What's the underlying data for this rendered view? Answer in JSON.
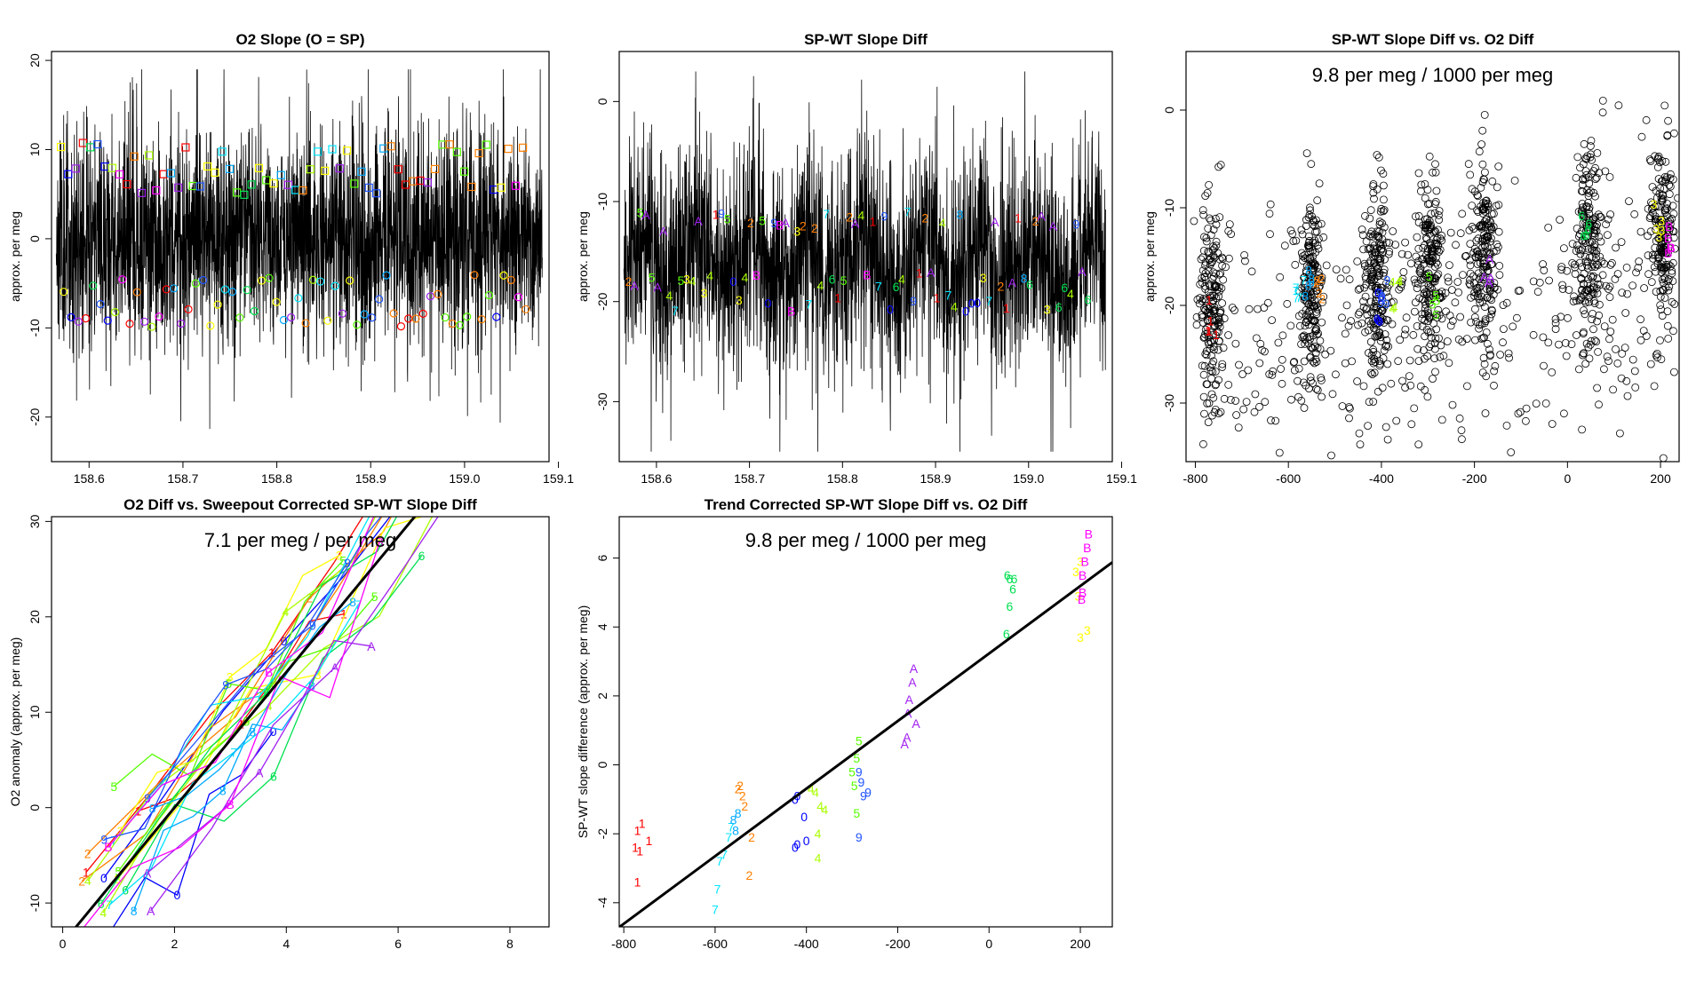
{
  "chart_data": [
    {
      "type": "line",
      "title": "O2 Slope (O = SP)",
      "xlabel": "",
      "ylabel": "approx. per meg",
      "xlim": [
        158.56,
        159.09
      ],
      "ylim": [
        -25,
        21
      ],
      "xticks": [
        "158.6",
        "158.7",
        "158.8",
        "158.9",
        "159.0",
        "159.1"
      ],
      "yticks": [
        "-20",
        "-10",
        "0",
        "10",
        "20"
      ],
      "series": [
        {
          "kind": "noise-trace",
          "color": "#000000",
          "center": 0,
          "band_sd": 6.0,
          "spike_range": [
            -23,
            19
          ]
        },
        {
          "kind": "squares",
          "note_values": "upper open squares",
          "y_levels": [
            10.2,
            9.8,
            7.7,
            6.0,
            5.5
          ]
        },
        {
          "kind": "circles",
          "note_values": "lower open circles",
          "y_levels": [
            -4.5,
            -5.8,
            -6.8,
            -8.5,
            -9.4
          ]
        }
      ],
      "grid": false
    },
    {
      "type": "line",
      "title": "SP-WT Slope Diff",
      "xlabel": "",
      "ylabel": "approx. per meg",
      "xlim": [
        158.56,
        159.09
      ],
      "ylim": [
        -36,
        5
      ],
      "xticks": [
        "158.6",
        "158.7",
        "158.8",
        "158.9",
        "159.0",
        "159.1"
      ],
      "yticks": [
        "-30",
        "-20",
        "-10",
        "0"
      ],
      "series": [
        {
          "kind": "noise-trace",
          "color": "#000000",
          "center": -16,
          "band_sd": 5.5,
          "spike_range": [
            -35,
            3
          ]
        }
      ],
      "grid": false
    },
    {
      "type": "scatter",
      "title": "SP-WT Slope Diff vs. O2 Diff",
      "annotation": "9.8 per meg / 1000 per meg",
      "xlabel": "",
      "ylabel": "approx. per meg",
      "xlim": [
        -820,
        240
      ],
      "ylim": [
        -36,
        6
      ],
      "xticks": [
        "-800",
        "-600",
        "-400",
        "-200",
        "0",
        "200"
      ],
      "yticks": [
        "-30",
        "-20",
        "-10",
        "0"
      ],
      "clusters": [
        {
          "label": "1",
          "x": -765,
          "y": -21,
          "color": "#ff0000"
        },
        {
          "label": "7",
          "x": -575,
          "y": -19,
          "color": "#00e5ff"
        },
        {
          "label": "8",
          "x": -555,
          "y": -18,
          "color": "#00aaff"
        },
        {
          "label": "2",
          "x": -530,
          "y": -19,
          "color": "#ff7f00"
        },
        {
          "label": "0",
          "x": -410,
          "y": -20,
          "color": "#0000ff"
        },
        {
          "label": "9",
          "x": -395,
          "y": -19,
          "color": "#2255ff"
        },
        {
          "label": "4",
          "x": -370,
          "y": -19,
          "color": "#aaff00"
        },
        {
          "label": "5",
          "x": -290,
          "y": -19,
          "color": "#55ff00"
        },
        {
          "label": "A",
          "x": -170,
          "y": -16,
          "color": "#a020f0"
        },
        {
          "label": "6",
          "x": 40,
          "y": -12,
          "color": "#00e050"
        },
        {
          "label": "3",
          "x": 195,
          "y": -11,
          "color": "#ffff00"
        },
        {
          "label": "B",
          "x": 215,
          "y": -13,
          "color": "#ff00ff"
        }
      ],
      "grid": false
    },
    {
      "type": "line",
      "title": "O2 Diff vs. Sweepout Corrected SP-WT Slope Diff",
      "annotation": "7.1 per meg / per meg",
      "xlabel": "",
      "ylabel": "O2 anomaly (approx. per meg)",
      "xlim": [
        -0.2,
        8.7
      ],
      "ylim": [
        -12.5,
        30.5
      ],
      "xticks": [
        "0",
        "2",
        "4",
        "6",
        "8"
      ],
      "yticks": [
        "-10",
        "0",
        "10",
        "20",
        "30"
      ],
      "fit_line": {
        "slope": 7.1,
        "intercept": -14.2
      },
      "grid": false
    },
    {
      "type": "scatter",
      "title": "Trend Corrected SP-WT Slope Diff vs. O2 Diff",
      "annotation": "9.8 per meg / 1000 per meg",
      "xlabel": "",
      "ylabel": "SP-WT slope difference (approx. per meg)",
      "xlim": [
        -810,
        270
      ],
      "ylim": [
        -4.7,
        7.2
      ],
      "xticks": [
        "-800",
        "-600",
        "-400",
        "-200",
        "0",
        "200"
      ],
      "yticks": [
        "-4",
        "-2",
        "0",
        "2",
        "4",
        "6"
      ],
      "fit_line": {
        "slope": 0.0098,
        "intercept": 3.23
      },
      "points": [
        {
          "label": "1",
          "x": -770,
          "y": -1.9
        },
        {
          "label": "1",
          "x": -760,
          "y": -1.7
        },
        {
          "label": "1",
          "x": -745,
          "y": -2.2
        },
        {
          "label": "1",
          "x": -775,
          "y": -2.4
        },
        {
          "label": "1",
          "x": -765,
          "y": -2.5
        },
        {
          "label": "1",
          "x": -770,
          "y": -3.4
        },
        {
          "label": "7",
          "x": -600,
          "y": -4.2
        },
        {
          "label": "7",
          "x": -595,
          "y": -3.6
        },
        {
          "label": "7",
          "x": -590,
          "y": -2.8
        },
        {
          "label": "7",
          "x": -580,
          "y": -2.6
        },
        {
          "label": "7",
          "x": -570,
          "y": -2.1
        },
        {
          "label": "7",
          "x": -565,
          "y": -1.8
        },
        {
          "label": "8",
          "x": -560,
          "y": -1.6
        },
        {
          "label": "8",
          "x": -555,
          "y": -1.9
        },
        {
          "label": "8",
          "x": -550,
          "y": -1.4
        },
        {
          "label": "2",
          "x": -545,
          "y": -0.6
        },
        {
          "label": "2",
          "x": -540,
          "y": -0.9
        },
        {
          "label": "2",
          "x": -535,
          "y": -1.2
        },
        {
          "label": "2",
          "x": -520,
          "y": -2.1
        },
        {
          "label": "2",
          "x": -525,
          "y": -3.2
        },
        {
          "label": "2",
          "x": -550,
          "y": -0.7
        },
        {
          "label": "0",
          "x": -425,
          "y": -1.0
        },
        {
          "label": "0",
          "x": -420,
          "y": -0.9
        },
        {
          "label": "0",
          "x": -405,
          "y": -1.5
        },
        {
          "label": "0",
          "x": -420,
          "y": -2.3
        },
        {
          "label": "0",
          "x": -400,
          "y": -2.2
        },
        {
          "label": "0",
          "x": -425,
          "y": -2.4
        },
        {
          "label": "4",
          "x": -390,
          "y": -0.7
        },
        {
          "label": "4",
          "x": -380,
          "y": -0.8
        },
        {
          "label": "4",
          "x": -370,
          "y": -1.2
        },
        {
          "label": "4",
          "x": -360,
          "y": -1.3
        },
        {
          "label": "4",
          "x": -375,
          "y": -2.0
        },
        {
          "label": "4",
          "x": -375,
          "y": -2.7
        },
        {
          "label": "5",
          "x": -300,
          "y": -0.2
        },
        {
          "label": "5",
          "x": -295,
          "y": -0.6
        },
        {
          "label": "5",
          "x": -290,
          "y": -1.4
        },
        {
          "label": "5",
          "x": -290,
          "y": 0.2
        },
        {
          "label": "5",
          "x": -285,
          "y": 0.7
        },
        {
          "label": "9",
          "x": -285,
          "y": -0.2
        },
        {
          "label": "9",
          "x": -280,
          "y": -0.5
        },
        {
          "label": "9",
          "x": -275,
          "y": -0.9
        },
        {
          "label": "9",
          "x": -265,
          "y": -0.8
        },
        {
          "label": "9",
          "x": -285,
          "y": -2.1
        },
        {
          "label": "A",
          "x": -185,
          "y": 0.6
        },
        {
          "label": "A",
          "x": -180,
          "y": 0.8
        },
        {
          "label": "A",
          "x": -178,
          "y": 1.5
        },
        {
          "label": "A",
          "x": -175,
          "y": 1.9
        },
        {
          "label": "A",
          "x": -168,
          "y": 2.4
        },
        {
          "label": "A",
          "x": -165,
          "y": 2.8
        },
        {
          "label": "A",
          "x": -160,
          "y": 1.2
        },
        {
          "label": "6",
          "x": 40,
          "y": 5.5
        },
        {
          "label": "6",
          "x": 45,
          "y": 5.4
        },
        {
          "label": "6",
          "x": 52,
          "y": 5.1
        },
        {
          "label": "6",
          "x": 55,
          "y": 5.4
        },
        {
          "label": "6",
          "x": 45,
          "y": 4.6
        },
        {
          "label": "6",
          "x": 38,
          "y": 3.8
        },
        {
          "label": "3",
          "x": 190,
          "y": 5.6
        },
        {
          "label": "3",
          "x": 200,
          "y": 5.9
        },
        {
          "label": "3",
          "x": 195,
          "y": 4.9
        },
        {
          "label": "3",
          "x": 200,
          "y": 3.7
        },
        {
          "label": "3",
          "x": 215,
          "y": 3.9
        },
        {
          "label": "B",
          "x": 205,
          "y": 5.5
        },
        {
          "label": "B",
          "x": 210,
          "y": 5.9
        },
        {
          "label": "B",
          "x": 215,
          "y": 6.3
        },
        {
          "label": "B",
          "x": 218,
          "y": 6.7
        },
        {
          "label": "B",
          "x": 205,
          "y": 5.0
        },
        {
          "label": "B",
          "x": 203,
          "y": 4.8
        }
      ],
      "grid": false
    }
  ],
  "label_colors": {
    "1": "#ff0000",
    "2": "#ff7f00",
    "3": "#ffff00",
    "4": "#aaff00",
    "5": "#55ff00",
    "6": "#00e050",
    "7": "#00e5ff",
    "8": "#00aaff",
    "9": "#2255ff",
    "0": "#0000ff",
    "A": "#a020f0",
    "B": "#ff00ff"
  }
}
